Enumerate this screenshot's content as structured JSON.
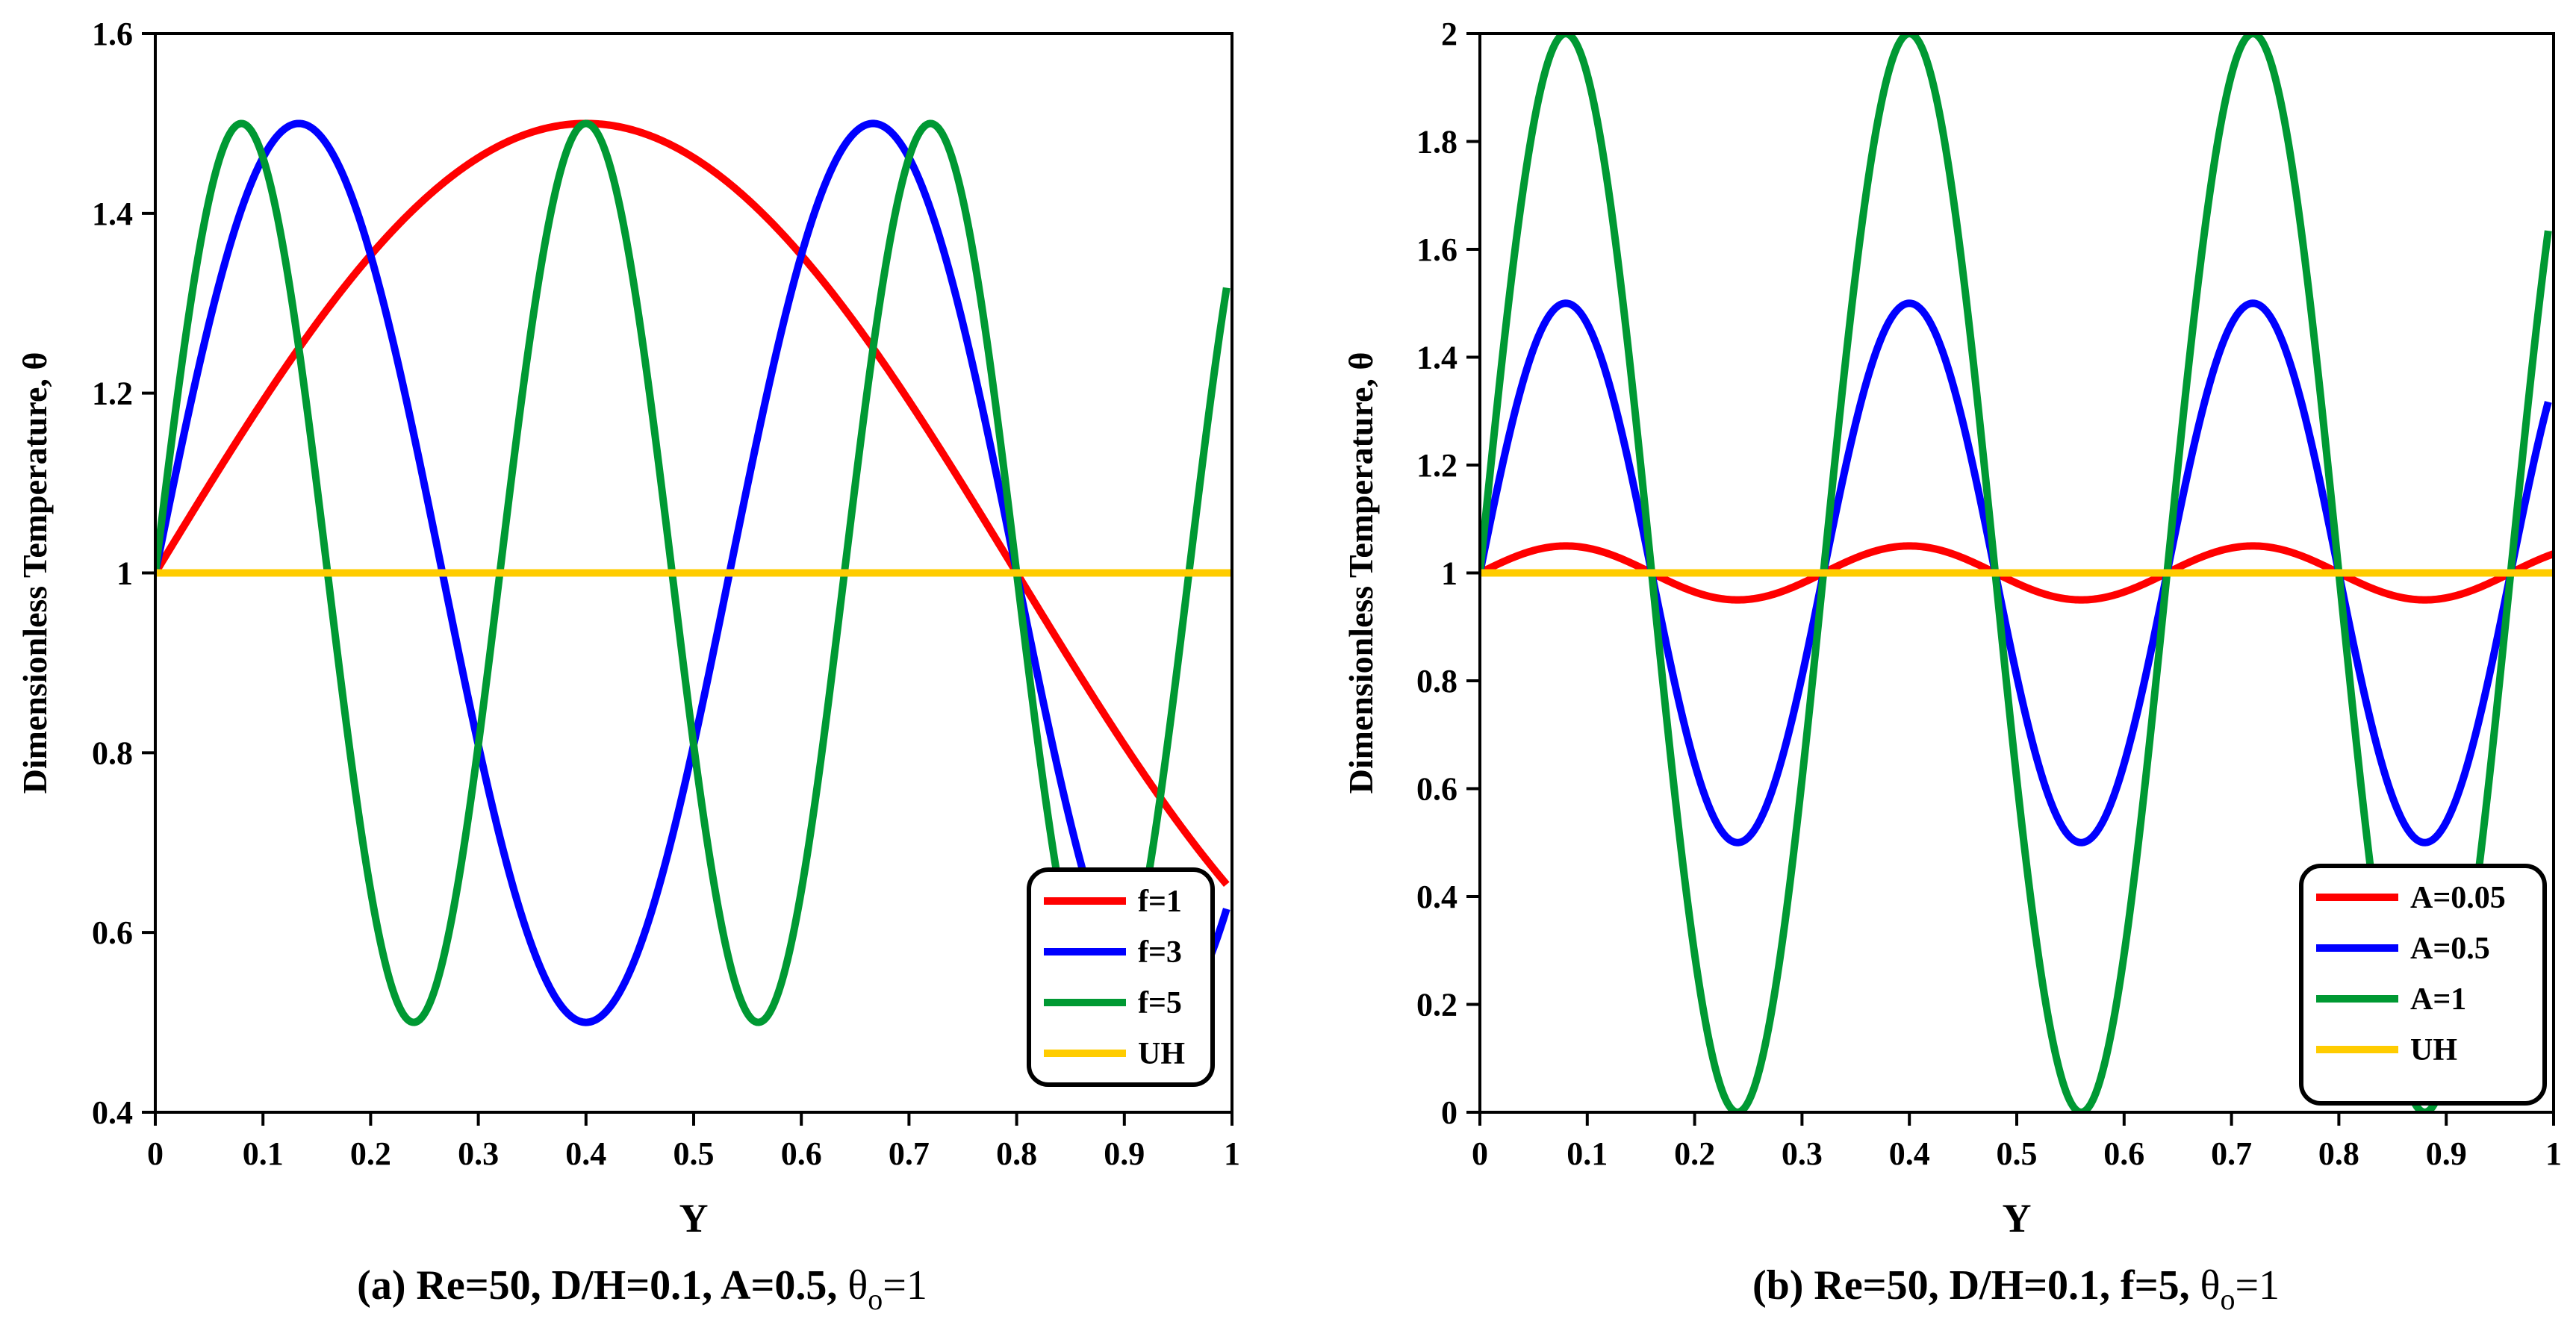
{
  "chart_data": [
    {
      "type": "line",
      "id": "a",
      "caption_main": "(a) Re=50, D/H=0.1, A=0.5, ",
      "caption_sym": "θ",
      "caption_sub": "o",
      "caption_tail": "=1",
      "xlabel": "Y",
      "ylabel": "Dimensionless Temperature,  θ",
      "xlim": [
        0,
        1
      ],
      "ylim": [
        0.4,
        1.6
      ],
      "x_ticks": [
        0,
        0.1,
        0.2,
        0.3,
        0.4,
        0.5,
        0.6,
        0.7,
        0.8,
        0.9,
        1
      ],
      "x_tick_labels": [
        "0",
        "0.1",
        "0.2",
        "0.3",
        "0.4",
        "0.5",
        "0.6",
        "0.7",
        "0.8",
        "0.9",
        "1"
      ],
      "y_ticks": [
        0.4,
        0.6,
        0.8,
        1.0,
        1.2,
        1.4,
        1.6
      ],
      "y_tick_labels": [
        "0.4",
        "0.6",
        "0.8",
        "1",
        "1.2",
        "1.4",
        "1.6"
      ],
      "legend_position": "bottom-right",
      "series": [
        {
          "name": "f=1",
          "color": "#ff0000",
          "amplitude": 0.5,
          "frequency": 1,
          "x_end": 0.995
        },
        {
          "name": "f=3",
          "color": "#0000ff",
          "amplitude": 0.5,
          "frequency": 3,
          "x_end": 0.995
        },
        {
          "name": "f=5",
          "color": "#009933",
          "amplitude": 0.5,
          "frequency": 5,
          "x_end": 0.995
        },
        {
          "name": "UH",
          "color": "#ffcc00",
          "amplitude": 0,
          "frequency": 0,
          "x_end": 1.0
        }
      ]
    },
    {
      "type": "line",
      "id": "b",
      "caption_main": "(b) Re=50, D/H=0.1, f=5, ",
      "caption_sym": "θ",
      "caption_sub": "o",
      "caption_tail": "=1",
      "xlabel": "Y",
      "ylabel": "Dimensionless Temperature,  θ",
      "xlim": [
        0,
        1
      ],
      "ylim": [
        0,
        2
      ],
      "x_ticks": [
        0,
        0.1,
        0.2,
        0.3,
        0.4,
        0.5,
        0.6,
        0.7,
        0.8,
        0.9,
        1
      ],
      "x_tick_labels": [
        "0",
        "0.1",
        "0.2",
        "0.3",
        "0.4",
        "0.5",
        "0.6",
        "0.7",
        "0.8",
        "0.9",
        "1"
      ],
      "y_ticks": [
        0,
        0.2,
        0.4,
        0.6,
        0.8,
        1.0,
        1.2,
        1.4,
        1.6,
        1.8,
        2.0
      ],
      "y_tick_labels": [
        "0",
        "0.2",
        "0.4",
        "0.6",
        "0.8",
        "1",
        "1.2",
        "1.4",
        "1.6",
        "1.8",
        "2"
      ],
      "legend_position": "bottom-right",
      "series": [
        {
          "name": "A=0.05",
          "color": "#ff0000",
          "amplitude": 0.05,
          "frequency": 5,
          "x_end": 1.0
        },
        {
          "name": "A=0.5",
          "color": "#0000ff",
          "amplitude": 0.5,
          "frequency": 5,
          "x_end": 0.995
        },
        {
          "name": "A=1",
          "color": "#009933",
          "amplitude": 1,
          "frequency": 5,
          "x_end": 0.995
        },
        {
          "name": "UH",
          "color": "#ffcc00",
          "amplitude": 0,
          "frequency": 0,
          "x_end": 1.0
        }
      ]
    }
  ]
}
